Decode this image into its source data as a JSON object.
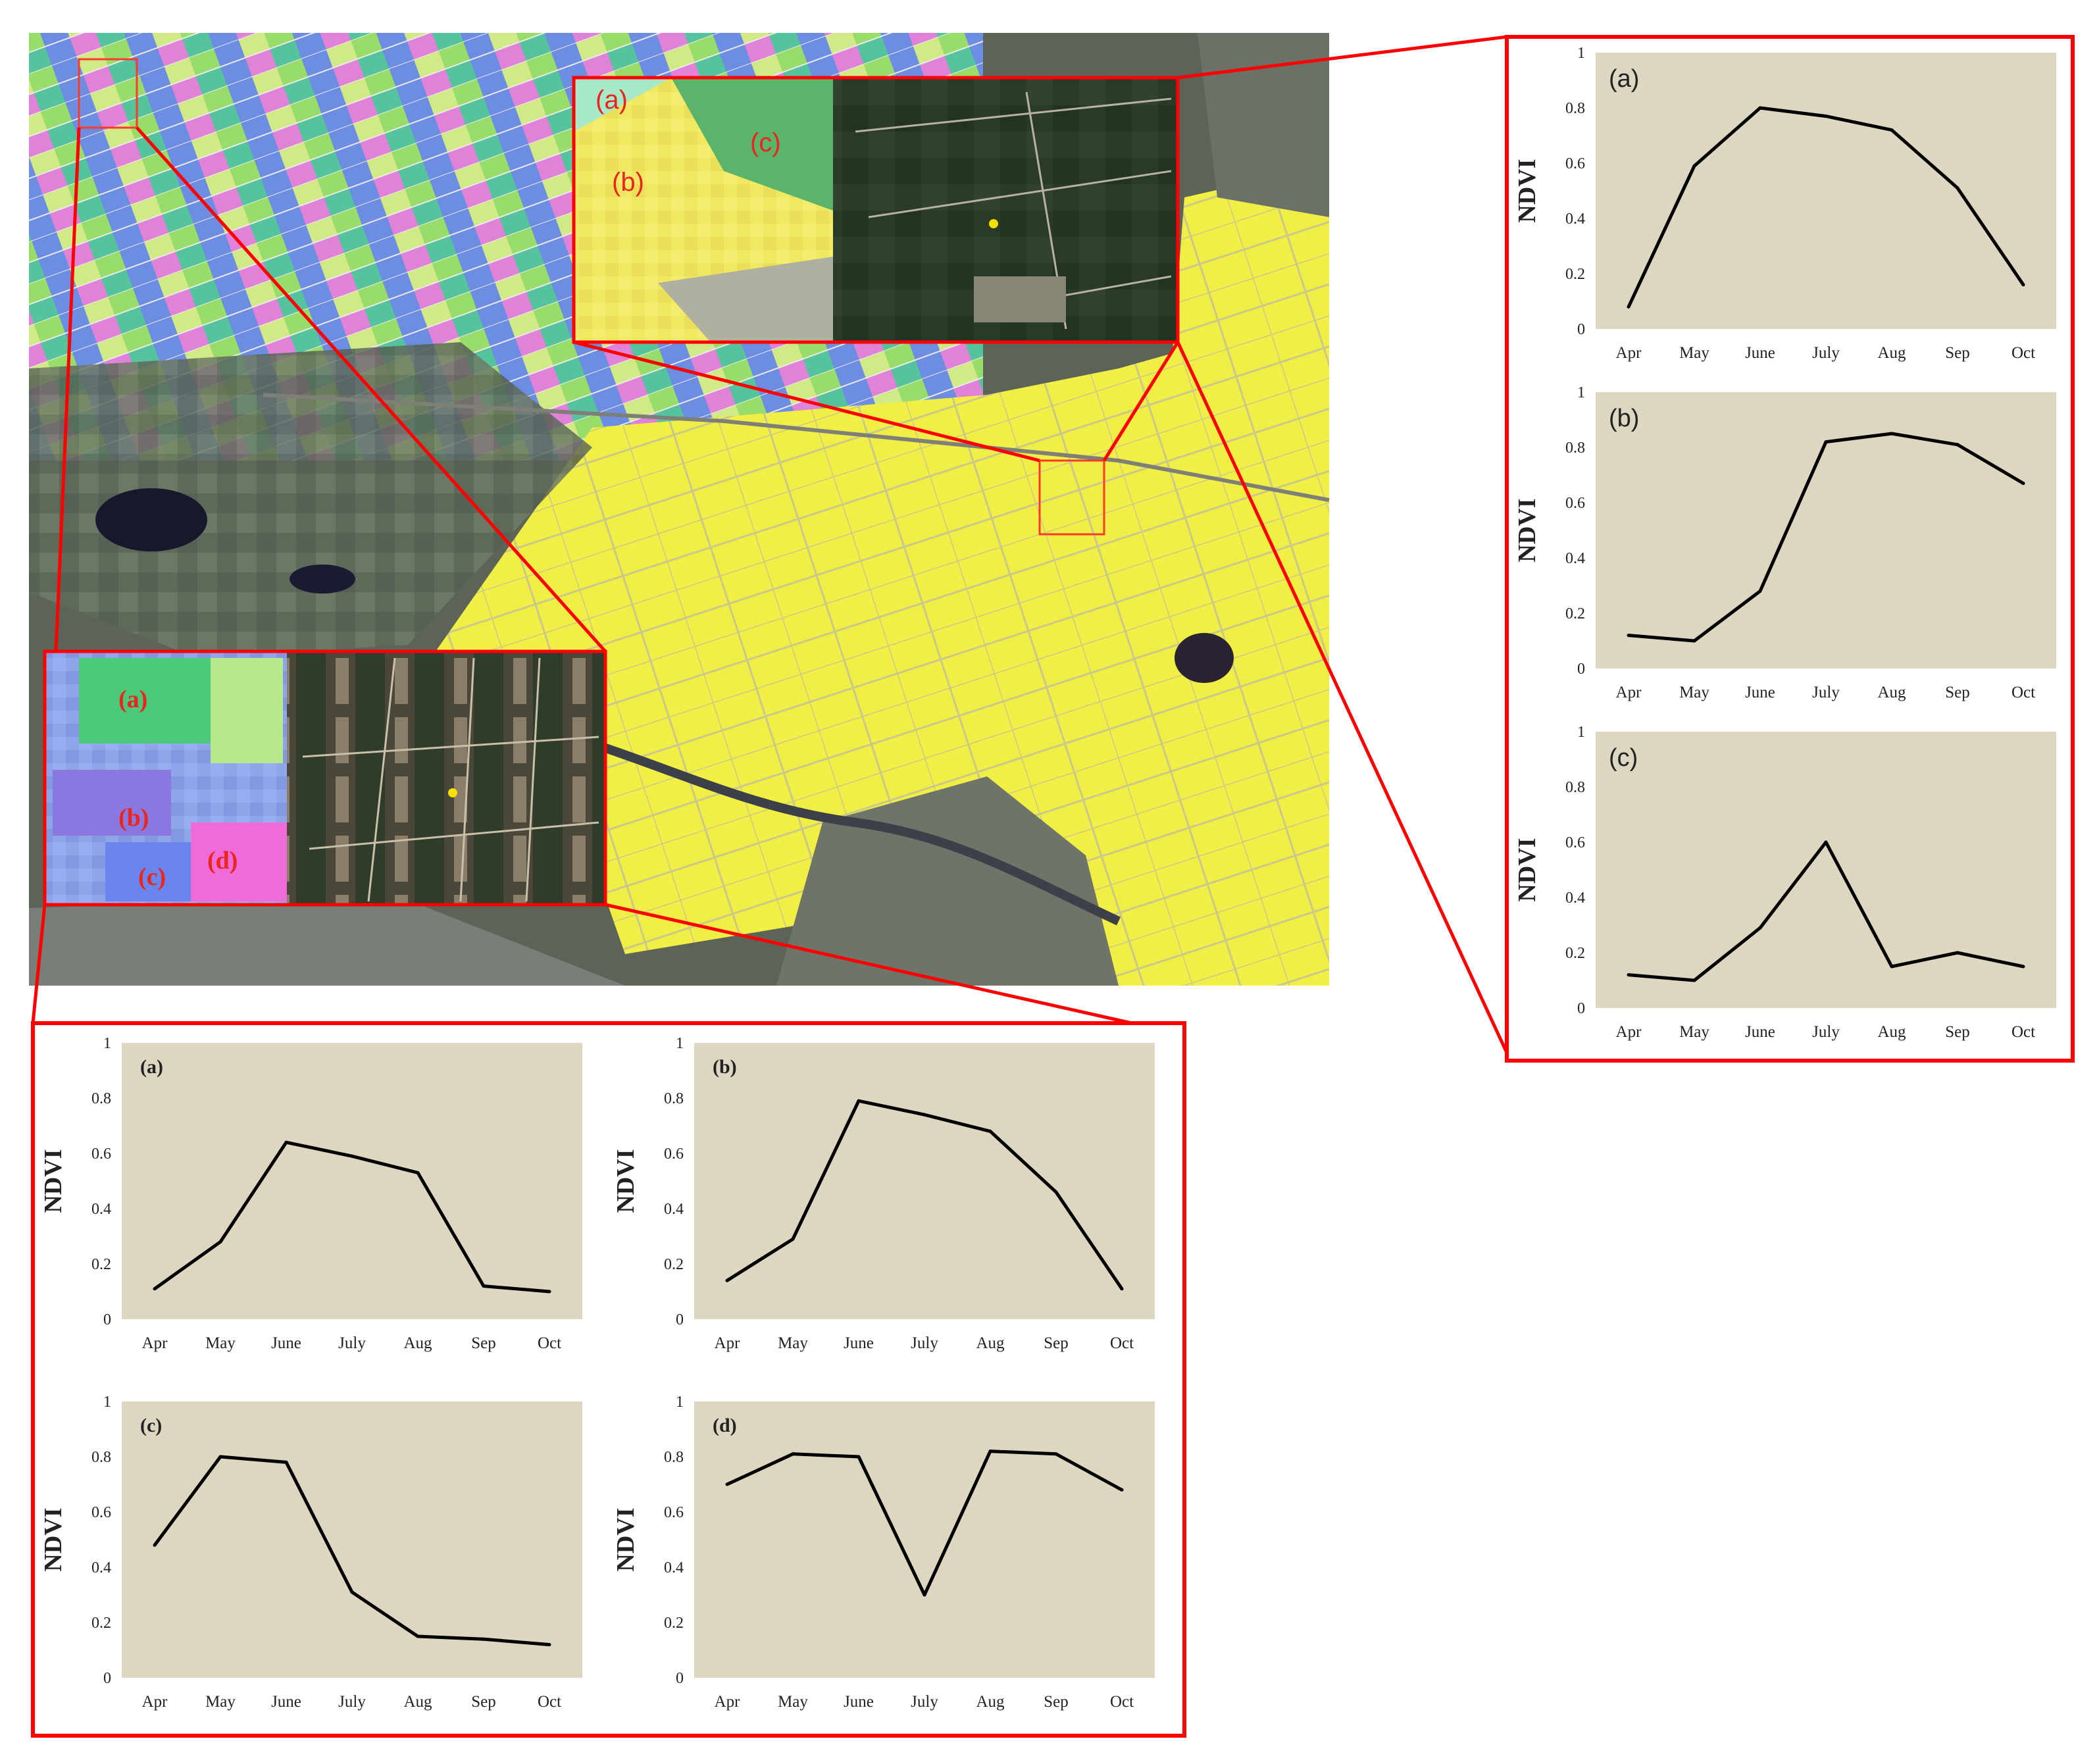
{
  "colors": {
    "frame": "#ff0000",
    "plot_bg": "#ddd6c0",
    "line": "#000000",
    "map_yellow": "#f3f04a",
    "map_dark": "#4d5548",
    "inset_label": "#e8261e"
  },
  "map": {
    "top_inset_labels": [
      "(a)",
      "(b)",
      "(c)"
    ],
    "bottom_inset_labels": [
      "(a)",
      "(b)",
      "(c)",
      "(d)"
    ]
  },
  "chart_data": [
    {
      "type": "line",
      "group": "right",
      "label": "(a)",
      "ylabel": "NDVI",
      "categories": [
        "Apr",
        "May",
        "June",
        "July",
        "Aug",
        "Sep",
        "Oct"
      ],
      "y_ticks": [
        "0",
        "0.2",
        "0.4",
        "0.6",
        "0.8",
        "1"
      ],
      "ylim": [
        0,
        1
      ],
      "values": [
        0.08,
        0.59,
        0.8,
        0.77,
        0.72,
        0.51,
        0.16
      ]
    },
    {
      "type": "line",
      "group": "right",
      "label": "(b)",
      "ylabel": "NDVI",
      "categories": [
        "Apr",
        "May",
        "June",
        "July",
        "Aug",
        "Sep",
        "Oct"
      ],
      "y_ticks": [
        "0",
        "0.2",
        "0.4",
        "0.6",
        "0.8",
        "1"
      ],
      "ylim": [
        0,
        1
      ],
      "values": [
        0.12,
        0.1,
        0.28,
        0.82,
        0.85,
        0.81,
        0.67
      ]
    },
    {
      "type": "line",
      "group": "right",
      "label": "(c)",
      "ylabel": "NDVI",
      "categories": [
        "Apr",
        "May",
        "June",
        "July",
        "Aug",
        "Sep",
        "Oct"
      ],
      "y_ticks": [
        "0",
        "0.2",
        "0.4",
        "0.6",
        "0.8",
        "1"
      ],
      "ylim": [
        0,
        1
      ],
      "values": [
        0.12,
        0.1,
        0.29,
        0.6,
        0.15,
        0.2,
        0.15
      ]
    },
    {
      "type": "line",
      "group": "bottom",
      "label": "(a)",
      "ylabel": "NDVI",
      "categories": [
        "Apr",
        "May",
        "June",
        "July",
        "Aug",
        "Sep",
        "Oct"
      ],
      "y_ticks": [
        "0",
        "0.2",
        "0.4",
        "0.6",
        "0.8",
        "1"
      ],
      "ylim": [
        0,
        1
      ],
      "values": [
        0.11,
        0.28,
        0.64,
        0.59,
        0.53,
        0.12,
        0.1
      ]
    },
    {
      "type": "line",
      "group": "bottom",
      "label": "(b)",
      "ylabel": "NDVI",
      "categories": [
        "Apr",
        "May",
        "June",
        "July",
        "Aug",
        "Sep",
        "Oct"
      ],
      "y_ticks": [
        "0",
        "0.2",
        "0.4",
        "0.6",
        "0.8",
        "1"
      ],
      "ylim": [
        0,
        1
      ],
      "values": [
        0.14,
        0.29,
        0.79,
        0.74,
        0.68,
        0.46,
        0.11
      ]
    },
    {
      "type": "line",
      "group": "bottom",
      "label": "(c)",
      "ylabel": "NDVI",
      "categories": [
        "Apr",
        "May",
        "June",
        "July",
        "Aug",
        "Sep",
        "Oct"
      ],
      "y_ticks": [
        "0",
        "0.2",
        "0.4",
        "0.6",
        "0.8",
        "1"
      ],
      "ylim": [
        0,
        1
      ],
      "values": [
        0.48,
        0.8,
        0.78,
        0.31,
        0.15,
        0.14,
        0.12
      ]
    },
    {
      "type": "line",
      "group": "bottom",
      "label": "(d)",
      "ylabel": "NDVI",
      "categories": [
        "Apr",
        "May",
        "June",
        "July",
        "Aug",
        "Sep",
        "Oct"
      ],
      "y_ticks": [
        "0",
        "0.2",
        "0.4",
        "0.6",
        "0.8",
        "1"
      ],
      "ylim": [
        0,
        1
      ],
      "values": [
        0.7,
        0.81,
        0.8,
        0.3,
        0.82,
        0.81,
        0.68
      ]
    }
  ]
}
